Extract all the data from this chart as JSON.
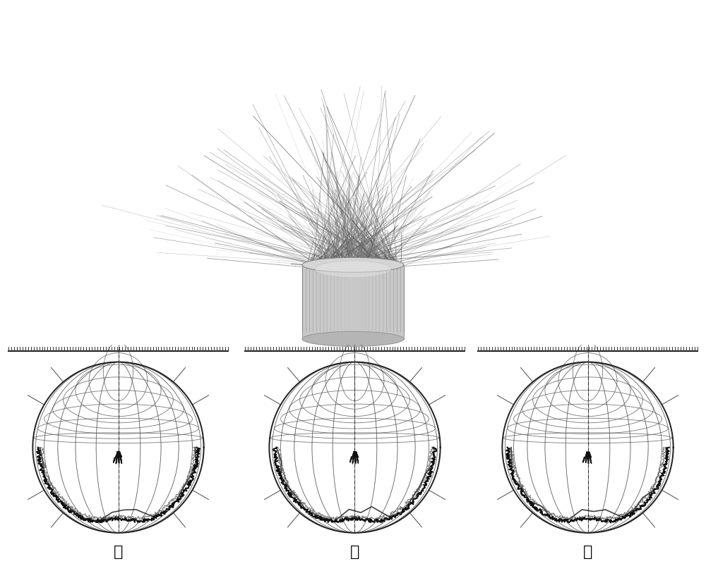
{
  "background_color": "#ffffff",
  "panel_labels": [
    "红",
    "绿",
    "蓝"
  ],
  "label_fontsize": 16,
  "grid_color": "#555555",
  "grid_linewidth": 0.6,
  "num_latitude_lines": 9,
  "num_longitude_lines": 12
}
